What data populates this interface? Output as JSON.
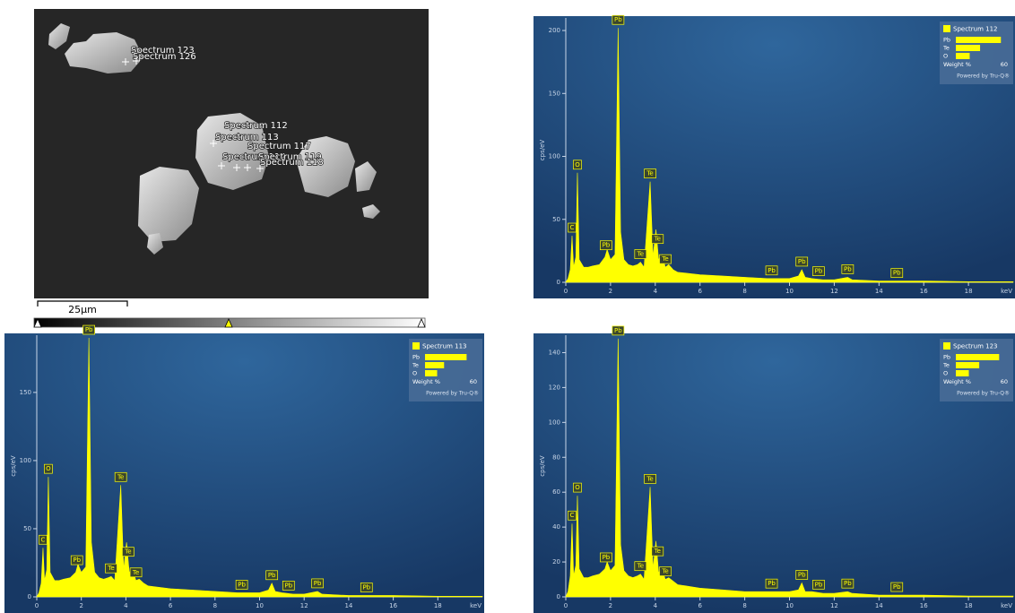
{
  "image": {
    "labels": [
      "Spectrum 123",
      "Spectrum 126",
      "Spectrum 112",
      "Spectrum 113",
      "Spectrum 117",
      "Spectrum 114",
      "Spectrum 119",
      "Spectrum 118"
    ],
    "scale_bar": "25µm"
  },
  "chart_data": [
    {
      "type": "area",
      "title": "Spectrum 112",
      "xlabel": "keV",
      "ylabel": "cps/eV",
      "color": "#ffff00",
      "x": [
        0,
        0.1,
        0.2,
        0.28,
        0.35,
        0.45,
        0.52,
        0.6,
        0.8,
        1.0,
        1.2,
        1.5,
        1.75,
        1.85,
        2.0,
        2.2,
        2.34,
        2.45,
        2.6,
        2.8,
        3.0,
        3.2,
        3.34,
        3.5,
        3.77,
        3.9,
        4.03,
        4.15,
        4.3,
        4.45,
        4.6,
        4.8,
        5,
        6,
        7,
        8,
        9,
        10,
        10.4,
        10.55,
        10.7,
        11,
        11.5,
        12,
        12.6,
        12.8,
        14,
        16,
        18,
        20
      ],
      "values": [
        0,
        3,
        10,
        37,
        12,
        20,
        87,
        18,
        12,
        12,
        13,
        14,
        20,
        26,
        18,
        22,
        202,
        40,
        18,
        14,
        13,
        14,
        16,
        12,
        80,
        20,
        42,
        18,
        22,
        12,
        14,
        10,
        8,
        6,
        5,
        4,
        3,
        3,
        5,
        10,
        4,
        3,
        2,
        2,
        4,
        2,
        1,
        1,
        0.5,
        0.5
      ],
      "xlim": [
        0,
        20
      ],
      "xticks": [
        0,
        2,
        4,
        6,
        8,
        10,
        12,
        14,
        16,
        18
      ],
      "ylim": [
        0,
        210
      ],
      "yticks": [
        0,
        50,
        100,
        150,
        200
      ],
      "peak_labels": [
        {
          "label": "C",
          "x": 0.28
        },
        {
          "label": "O",
          "x": 0.52
        },
        {
          "label": "Pb",
          "x": 1.8
        },
        {
          "label": "Pb",
          "x": 2.34
        },
        {
          "label": "Te",
          "x": 3.34
        },
        {
          "label": "Te",
          "x": 3.77
        },
        {
          "label": "Te",
          "x": 4.1
        },
        {
          "label": "Te",
          "x": 4.45
        },
        {
          "label": "Pb",
          "x": 9.2
        },
        {
          "label": "Pb",
          "x": 10.55
        },
        {
          "label": "Pb",
          "x": 11.3
        },
        {
          "label": "Pb",
          "x": 12.6
        },
        {
          "label": "Pb",
          "x": 14.8
        }
      ],
      "composition": {
        "categories": [
          "Pb",
          "Te",
          "O"
        ],
        "values": [
          52,
          28,
          16
        ],
        "xlabel": "Weight %",
        "xlim": [
          0,
          60
        ],
        "xticks": [
          60
        ],
        "footer": "Powered by Tru-Q®"
      }
    },
    {
      "type": "area",
      "title": "Spectrum 113",
      "xlabel": "keV",
      "ylabel": "cps/eV",
      "color": "#ffff00",
      "x": [
        0,
        0.1,
        0.2,
        0.28,
        0.35,
        0.45,
        0.52,
        0.6,
        0.8,
        1.0,
        1.2,
        1.5,
        1.75,
        1.85,
        2.0,
        2.2,
        2.34,
        2.45,
        2.6,
        2.8,
        3.0,
        3.2,
        3.34,
        3.5,
        3.77,
        3.9,
        4.03,
        4.15,
        4.3,
        4.45,
        4.6,
        4.8,
        5,
        6,
        7,
        8,
        9,
        10,
        10.4,
        10.55,
        10.7,
        11,
        11.5,
        12,
        12.6,
        12.8,
        14,
        16,
        18,
        20
      ],
      "values": [
        0,
        3,
        10,
        36,
        12,
        20,
        88,
        18,
        12,
        12,
        13,
        14,
        18,
        24,
        18,
        22,
        190,
        40,
        18,
        14,
        13,
        14,
        15,
        12,
        82,
        20,
        40,
        18,
        20,
        12,
        13,
        10,
        8,
        6,
        5,
        4,
        3,
        3,
        5,
        10,
        4,
        3,
        2,
        2,
        4,
        2,
        1,
        1,
        0.5,
        0.5
      ],
      "xlim": [
        0,
        20
      ],
      "xticks": [
        0,
        2,
        4,
        6,
        8,
        10,
        12,
        14,
        16,
        18
      ],
      "ylim": [
        0,
        192
      ],
      "yticks": [
        0,
        50,
        100,
        150
      ],
      "peak_labels": [
        {
          "label": "C",
          "x": 0.28
        },
        {
          "label": "O",
          "x": 0.52
        },
        {
          "label": "Pb",
          "x": 1.8
        },
        {
          "label": "Pb",
          "x": 2.34
        },
        {
          "label": "Te",
          "x": 3.34
        },
        {
          "label": "Te",
          "x": 3.77
        },
        {
          "label": "Te",
          "x": 4.1
        },
        {
          "label": "Te",
          "x": 4.45
        },
        {
          "label": "Pb",
          "x": 9.2
        },
        {
          "label": "Pb",
          "x": 10.55
        },
        {
          "label": "Pb",
          "x": 11.3
        },
        {
          "label": "Pb",
          "x": 12.6
        },
        {
          "label": "Pb",
          "x": 14.8
        }
      ],
      "composition": {
        "categories": [
          "Pb",
          "Te",
          "O"
        ],
        "values": [
          48,
          22,
          14
        ],
        "xlabel": "Weight %",
        "xlim": [
          0,
          60
        ],
        "xticks": [
          60
        ],
        "footer": "Powered by Tru-Q®"
      }
    },
    {
      "type": "area",
      "title": "Spectrum 123",
      "xlabel": "keV",
      "ylabel": "cps/eV",
      "color": "#ffff00",
      "x": [
        0,
        0.1,
        0.2,
        0.28,
        0.35,
        0.45,
        0.52,
        0.6,
        0.8,
        1.0,
        1.2,
        1.5,
        1.75,
        1.85,
        2.0,
        2.2,
        2.34,
        2.45,
        2.6,
        2.8,
        3.0,
        3.2,
        3.34,
        3.5,
        3.77,
        3.9,
        4.03,
        4.15,
        4.3,
        4.45,
        4.6,
        4.8,
        5,
        6,
        7,
        8,
        9,
        10,
        10.4,
        10.55,
        10.7,
        11,
        11.5,
        12,
        12.6,
        12.8,
        14,
        16,
        18,
        20
      ],
      "values": [
        0,
        3,
        12,
        42,
        12,
        18,
        58,
        16,
        11,
        11,
        12,
        13,
        16,
        20,
        15,
        18,
        148,
        30,
        15,
        12,
        11,
        12,
        13,
        10,
        63,
        16,
        32,
        14,
        16,
        10,
        11,
        9,
        7,
        5,
        4,
        3,
        3,
        3,
        4,
        8,
        3,
        3,
        2,
        2,
        3,
        2,
        1,
        1,
        0.5,
        0.5
      ],
      "xlim": [
        0,
        20
      ],
      "xticks": [
        0,
        2,
        4,
        6,
        8,
        10,
        12,
        14,
        16,
        18
      ],
      "ylim": [
        0,
        150
      ],
      "yticks": [
        0,
        20,
        40,
        60,
        80,
        100,
        120,
        140
      ],
      "peak_labels": [
        {
          "label": "C",
          "x": 0.28
        },
        {
          "label": "O",
          "x": 0.52
        },
        {
          "label": "Pb",
          "x": 1.8
        },
        {
          "label": "Pb",
          "x": 2.34
        },
        {
          "label": "Te",
          "x": 3.34
        },
        {
          "label": "Te",
          "x": 3.77
        },
        {
          "label": "Te",
          "x": 4.1
        },
        {
          "label": "Te",
          "x": 4.45
        },
        {
          "label": "Pb",
          "x": 9.2
        },
        {
          "label": "Pb",
          "x": 10.55
        },
        {
          "label": "Pb",
          "x": 11.3
        },
        {
          "label": "Pb",
          "x": 12.6
        },
        {
          "label": "Pb",
          "x": 14.8
        }
      ],
      "composition": {
        "categories": [
          "Pb",
          "Te",
          "O"
        ],
        "values": [
          50,
          27,
          15
        ],
        "xlabel": "Weight %",
        "xlim": [
          0,
          60
        ],
        "xticks": [
          60
        ],
        "footer": "Powered by Tru-Q®"
      }
    }
  ]
}
